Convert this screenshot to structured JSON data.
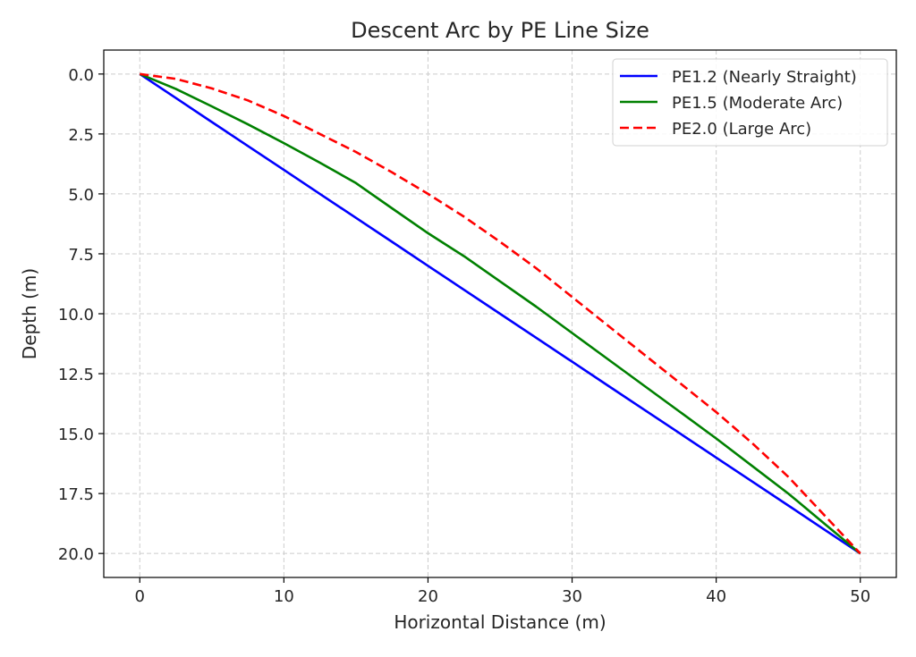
{
  "chart_data": {
    "type": "line",
    "title": "Descent Arc by PE Line Size",
    "xlabel": "Horizontal Distance (m)",
    "ylabel": "Depth (m)",
    "xlim": [
      -2.5,
      52.5
    ],
    "ylim": [
      21.0,
      -1.0
    ],
    "y_inverted": true,
    "grid": true,
    "legend_position": "top-right",
    "x_ticks": [
      0,
      10,
      20,
      30,
      40,
      50
    ],
    "x_tick_labels": [
      "0",
      "10",
      "20",
      "30",
      "40",
      "50"
    ],
    "y_ticks": [
      0,
      2.5,
      5,
      7.5,
      10,
      12.5,
      15,
      17.5,
      20
    ],
    "y_tick_labels": [
      "0.0",
      "2.5",
      "5.0",
      "7.5",
      "10.0",
      "12.5",
      "15.0",
      "17.5",
      "20.0"
    ],
    "x": [
      0,
      2.5,
      5,
      7.5,
      10,
      12.5,
      15,
      17.5,
      20,
      22.5,
      25,
      27.5,
      30,
      32.5,
      35,
      37.5,
      40,
      42.5,
      45,
      47.5,
      50
    ],
    "series": [
      {
        "name": "PE1.2 (Nearly Straight)",
        "color": "#0000ff",
        "dash": "solid",
        "values": [
          0,
          1.0,
          2.0,
          3.0,
          4.0,
          5.0,
          6.0,
          7.0,
          8.0,
          9.0,
          10.0,
          11.0,
          12.0,
          13.0,
          14.0,
          15.0,
          16.0,
          17.0,
          18.0,
          19.0,
          20.0
        ]
      },
      {
        "name": "PE1.5 (Moderate Arc)",
        "color": "#008000",
        "dash": "solid",
        "values": [
          0,
          0.62,
          1.35,
          2.1,
          2.88,
          3.7,
          4.55,
          5.6,
          6.64,
          7.6,
          8.65,
          9.7,
          10.8,
          11.9,
          13.0,
          14.1,
          15.2,
          16.35,
          17.5,
          18.75,
          20.0
        ]
      },
      {
        "name": "PE2.0 (Large Arc)",
        "color": "#ff0000",
        "dash": "dashed",
        "values": [
          0,
          0.2,
          0.6,
          1.1,
          1.75,
          2.5,
          3.25,
          4.1,
          5.0,
          5.95,
          7.0,
          8.1,
          9.3,
          10.5,
          11.7,
          12.9,
          14.1,
          15.4,
          16.8,
          18.4,
          20.0
        ]
      }
    ]
  }
}
